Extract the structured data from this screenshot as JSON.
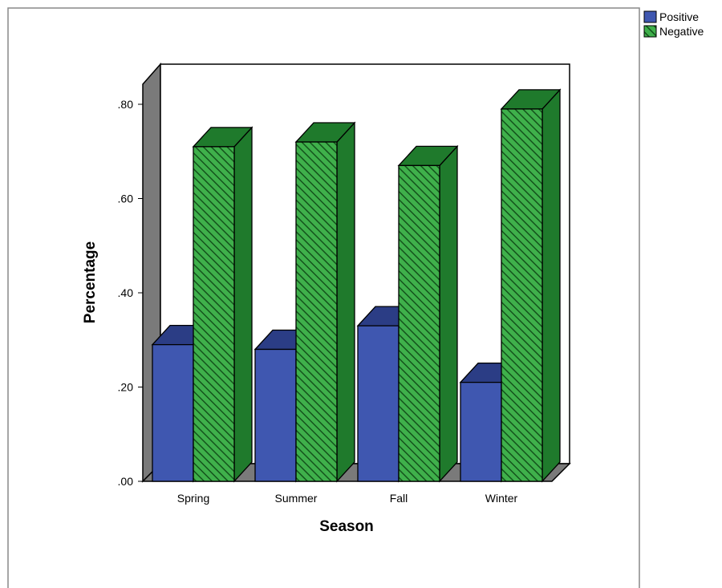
{
  "chart_data": {
    "type": "bar",
    "style": "3d-clustered",
    "title": "",
    "xlabel": "Season",
    "ylabel": "Percentage",
    "categories": [
      "Spring",
      "Summer",
      "Fall",
      "Winter"
    ],
    "ylim": [
      0,
      0.8
    ],
    "y_ticks": [
      {
        "value": 0,
        "label": ".00"
      },
      {
        "value": 0.2,
        "label": ".20"
      },
      {
        "value": 0.4,
        "label": ".40"
      },
      {
        "value": 0.6,
        "label": ".60"
      },
      {
        "value": 0.8,
        "label": ".80"
      }
    ],
    "series": [
      {
        "name": "Positive",
        "values": [
          0.29,
          0.28,
          0.33,
          0.21
        ],
        "color": "#3f57b0",
        "side_color": "#253475",
        "top_color": "#2b3d85",
        "pattern": "solid"
      },
      {
        "name": "Negative",
        "values": [
          0.71,
          0.72,
          0.67,
          0.79
        ],
        "color": "#3fb04b",
        "side_color": "#1f7a2c",
        "top_color": "#1f7a2c",
        "pattern": "diagonal-hatch"
      }
    ],
    "grid": false,
    "legend_position": "top-right"
  },
  "colors": {
    "frame_border": "#888888",
    "wall": "#ffffff",
    "left_wall": "#7a7a7a",
    "floor": "#7a7a7a",
    "hatch_line": "#14531c"
  }
}
